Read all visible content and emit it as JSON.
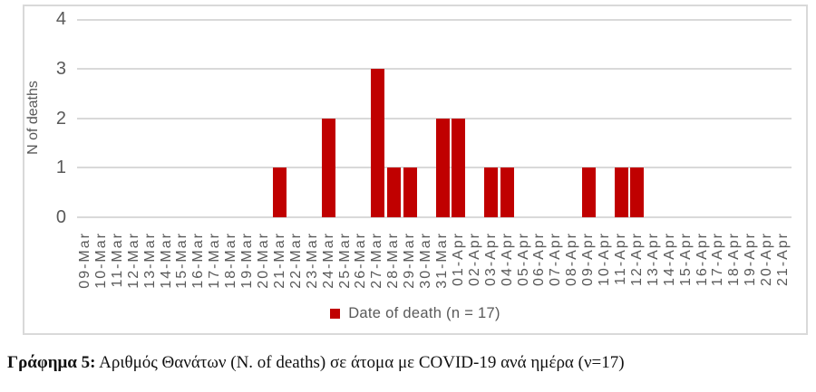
{
  "chart_data": {
    "type": "bar",
    "title": "",
    "ylabel": "N of deaths",
    "xlabel": "",
    "ylim": [
      0,
      4
    ],
    "yticks": [
      0,
      1,
      2,
      3,
      4
    ],
    "grid": "horizontal",
    "legend": "Date of death (n = 17)",
    "legend_position": "bottom",
    "bar_color": "#C00000",
    "gridline_color": "#D9D9D9",
    "axis_text_color": "#595959",
    "categories": [
      "09-Mar",
      "10-Mar",
      "11-Mar",
      "12-Mar",
      "13-Mar",
      "14-Mar",
      "15-Mar",
      "16-Mar",
      "17-Mar",
      "18-Mar",
      "19-Mar",
      "20-Mar",
      "21-Mar",
      "22-Mar",
      "23-Mar",
      "24-Mar",
      "25-Mar",
      "26-Mar",
      "27-Mar",
      "28-Mar",
      "29-Mar",
      "30-Mar",
      "31-Mar",
      "01-Apr",
      "02-Apr",
      "03-Apr",
      "04-Apr",
      "05-Apr",
      "06-Apr",
      "07-Apr",
      "08-Apr",
      "09-Apr",
      "10-Apr",
      "11-Apr",
      "12-Apr",
      "13-Apr",
      "14-Apr",
      "15-Apr",
      "16-Apr",
      "17-Apr",
      "18-Apr",
      "19-Apr",
      "20-Apr",
      "21-Apr"
    ],
    "values": [
      0,
      0,
      0,
      0,
      0,
      0,
      0,
      0,
      0,
      0,
      0,
      0,
      1,
      0,
      0,
      2,
      0,
      0,
      3,
      1,
      1,
      0,
      2,
      2,
      0,
      1,
      1,
      0,
      0,
      0,
      0,
      1,
      0,
      1,
      1,
      0,
      0,
      0,
      0,
      0,
      0,
      0,
      0,
      0
    ],
    "total_n": 17
  },
  "caption": {
    "prefix": "Γράφημα 5:",
    "text": " Αριθμός Θανάτων (N. of deaths) σε άτομα με COVID-19 ανά ημέρα (ν=17)"
  }
}
